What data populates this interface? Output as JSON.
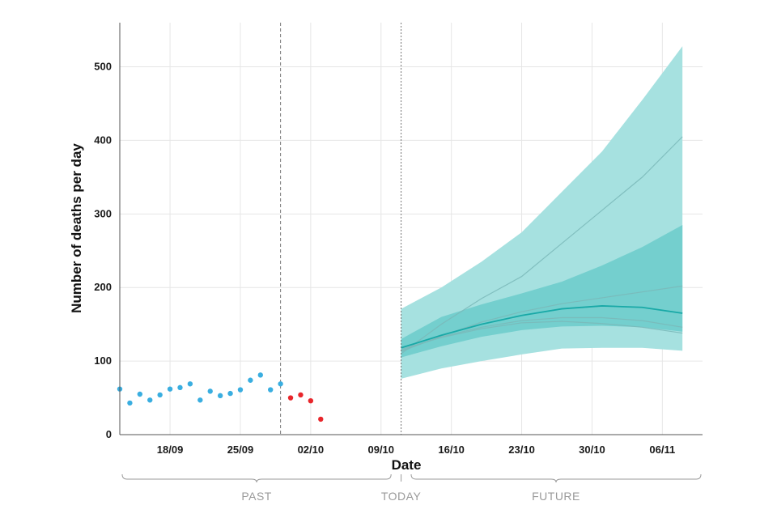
{
  "chart_data": {
    "type": "line",
    "title": "",
    "xlabel": "Date",
    "ylabel": "Number of deaths per day",
    "ylim": [
      0,
      560
    ],
    "y_ticks": [
      0,
      100,
      200,
      300,
      400,
      500
    ],
    "x_range": [
      "2020-09-13",
      "2020-11-10"
    ],
    "x_ticks": [
      {
        "date": "2020-09-18",
        "label": "18/09"
      },
      {
        "date": "2020-09-25",
        "label": "25/09"
      },
      {
        "date": "2020-10-02",
        "label": "02/10"
      },
      {
        "date": "2020-10-09",
        "label": "09/10"
      },
      {
        "date": "2020-10-16",
        "label": "16/10"
      },
      {
        "date": "2020-10-23",
        "label": "23/10"
      },
      {
        "date": "2020-10-30",
        "label": "30/10"
      },
      {
        "date": "2020-11-06",
        "label": "06/11"
      }
    ],
    "grid": true,
    "markers": [
      {
        "date": "2020-09-29",
        "style": "dashed",
        "label": ""
      },
      {
        "date": "2020-10-11",
        "style": "dotted",
        "label": "TODAY"
      }
    ],
    "periods": [
      {
        "label": "PAST",
        "from": "2020-09-13",
        "to": "2020-10-10"
      },
      {
        "label": "TODAY",
        "at": "2020-10-11"
      },
      {
        "label": "FUTURE",
        "from": "2020-10-12",
        "to": "2020-11-10"
      }
    ],
    "colors": {
      "observed": "#3aaee0",
      "incomplete": "#e8262b",
      "band_outer": "#a6e1e0",
      "band_inner": "#74cfce",
      "central_line": "#19a9a7",
      "scenario_line": "#7ab9b8"
    },
    "observed": {
      "dates": [
        "2020-09-13",
        "2020-09-14",
        "2020-09-15",
        "2020-09-16",
        "2020-09-17",
        "2020-09-18",
        "2020-09-19",
        "2020-09-20",
        "2020-09-21",
        "2020-09-22",
        "2020-09-23",
        "2020-09-24",
        "2020-09-25",
        "2020-09-26",
        "2020-09-27",
        "2020-09-28",
        "2020-09-29"
      ],
      "values": [
        62,
        43,
        55,
        47,
        54,
        62,
        64,
        69,
        47,
        59,
        53,
        56,
        61,
        74,
        81,
        61,
        69
      ]
    },
    "incomplete": {
      "dates": [
        "2020-09-30",
        "2020-10-01",
        "2020-10-02",
        "2020-10-03"
      ],
      "values": [
        50,
        54,
        46,
        21
      ]
    },
    "projection": {
      "dates": [
        "2020-10-11",
        "2020-10-15",
        "2020-10-19",
        "2020-10-23",
        "2020-10-27",
        "2020-10-31",
        "2020-11-04",
        "2020-11-08"
      ],
      "outer_lower": [
        76,
        90,
        100,
        109,
        117,
        118,
        118,
        114
      ],
      "outer_upper": [
        171,
        200,
        235,
        275,
        330,
        385,
        455,
        528
      ],
      "inner_lower": [
        105,
        120,
        133,
        142,
        147,
        148,
        146,
        140
      ],
      "inner_upper": [
        130,
        160,
        177,
        192,
        208,
        230,
        255,
        285
      ],
      "central": [
        118,
        135,
        150,
        162,
        171,
        175,
        173,
        165
      ],
      "lines": [
        {
          "values": [
            110,
            150,
            185,
            215,
            260,
            305,
            350,
            405
          ]
        },
        {
          "values": [
            113,
            134,
            153,
            167,
            178,
            186,
            194,
            202
          ]
        },
        {
          "values": [
            114,
            133,
            146,
            155,
            159,
            159,
            155,
            146
          ]
        },
        {
          "values": [
            116,
            132,
            144,
            152,
            154,
            151,
            146,
            138
          ]
        }
      ]
    }
  }
}
